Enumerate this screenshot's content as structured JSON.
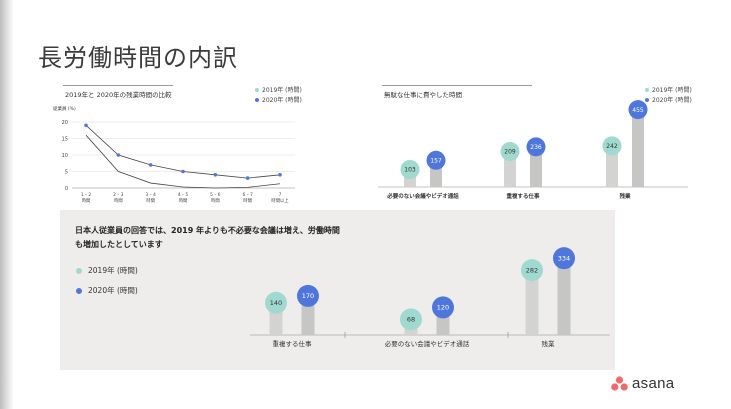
{
  "page": {
    "title": "長労働時間の内訳",
    "brand": "asana"
  },
  "colors": {
    "y2019": "#9fd9cf",
    "y2020": "#4f77db",
    "line": "#444444",
    "panel": "#efedeb"
  },
  "chart_data": [
    {
      "type": "line",
      "title": "2019年と 2020年の残業時間の比較",
      "ylabel": "従業員 (%)",
      "ylim": [
        0,
        20
      ],
      "yticks": [
        0,
        5,
        10,
        15,
        20
      ],
      "categories": [
        [
          "1 – 2",
          "時間"
        ],
        [
          "2 – 3",
          "時間"
        ],
        [
          "3 – 4",
          "時間"
        ],
        [
          "4 – 5",
          "時間"
        ],
        [
          "5 – 6",
          "時間"
        ],
        [
          "6 – 7",
          "時間"
        ],
        [
          "7",
          "時間以上"
        ]
      ],
      "series": [
        {
          "name": "2019年 (時間)",
          "values": [
            16,
            5,
            1.5,
            0.3,
            0,
            0.2,
            1.3
          ]
        },
        {
          "name": "2020年 (時間)",
          "values": [
            19,
            10,
            7,
            5,
            4,
            3,
            4
          ]
        }
      ],
      "legend": "top-right"
    },
    {
      "type": "bar",
      "title": "無駄な仕事に費やした時間",
      "categories": [
        "必要のない会議やビデオ通話",
        "重複する仕事",
        "残業"
      ],
      "series": [
        {
          "name": "2019年 (時間)",
          "values": [
            103,
            209,
            242
          ]
        },
        {
          "name": "2020年 (時間)",
          "values": [
            157,
            236,
            455
          ]
        }
      ],
      "legend": "top-right"
    },
    {
      "type": "bar",
      "title": "日本人従業員の回答では、2019 年よりも不必要な会議は増え、労働時間も増加したとしています",
      "categories": [
        "重複する仕事",
        "必要のない会議やビデオ通話",
        "残業"
      ],
      "series": [
        {
          "name": "2019年 (時間)",
          "values": [
            140,
            68,
            282
          ]
        },
        {
          "name": "2020年 (時間)",
          "values": [
            170,
            120,
            334
          ]
        }
      ],
      "legend": "left"
    }
  ]
}
